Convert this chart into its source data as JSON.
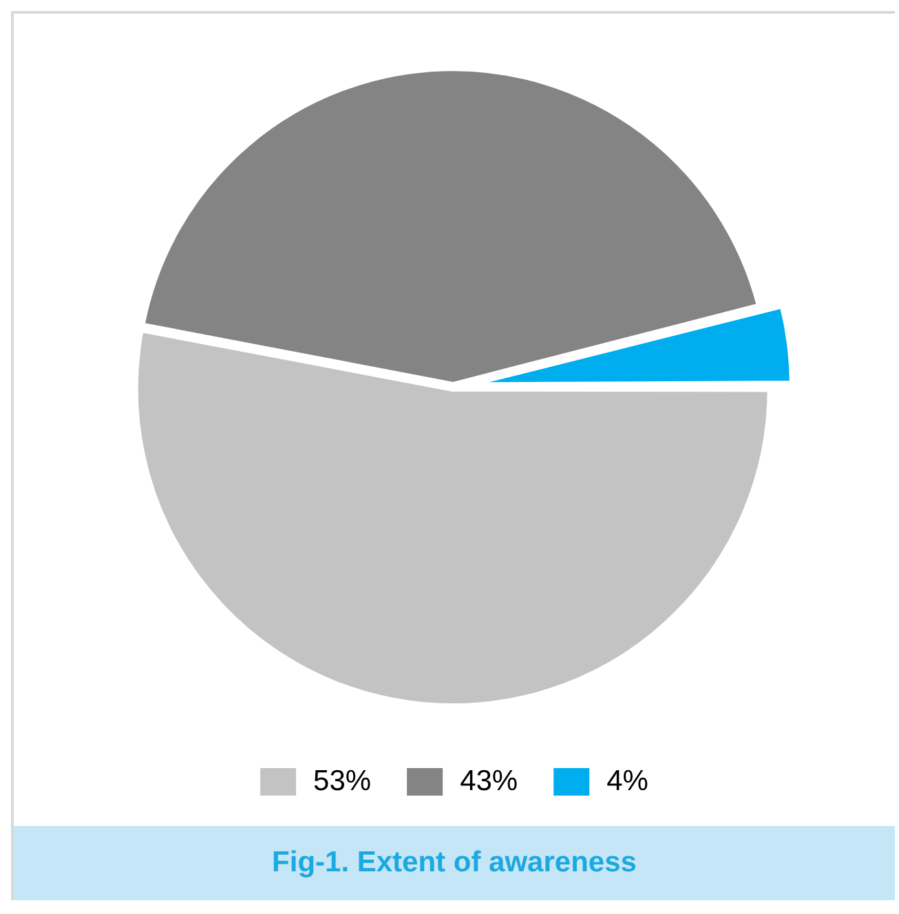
{
  "chart_data": {
    "type": "pie",
    "title": "Fig-1. Extent of awareness",
    "categories": [
      "53%",
      "43%",
      "4%"
    ],
    "values": [
      53,
      43,
      4
    ],
    "colors": [
      "#c3c3c3",
      "#848484",
      "#00adef"
    ],
    "legend": "bottom"
  }
}
